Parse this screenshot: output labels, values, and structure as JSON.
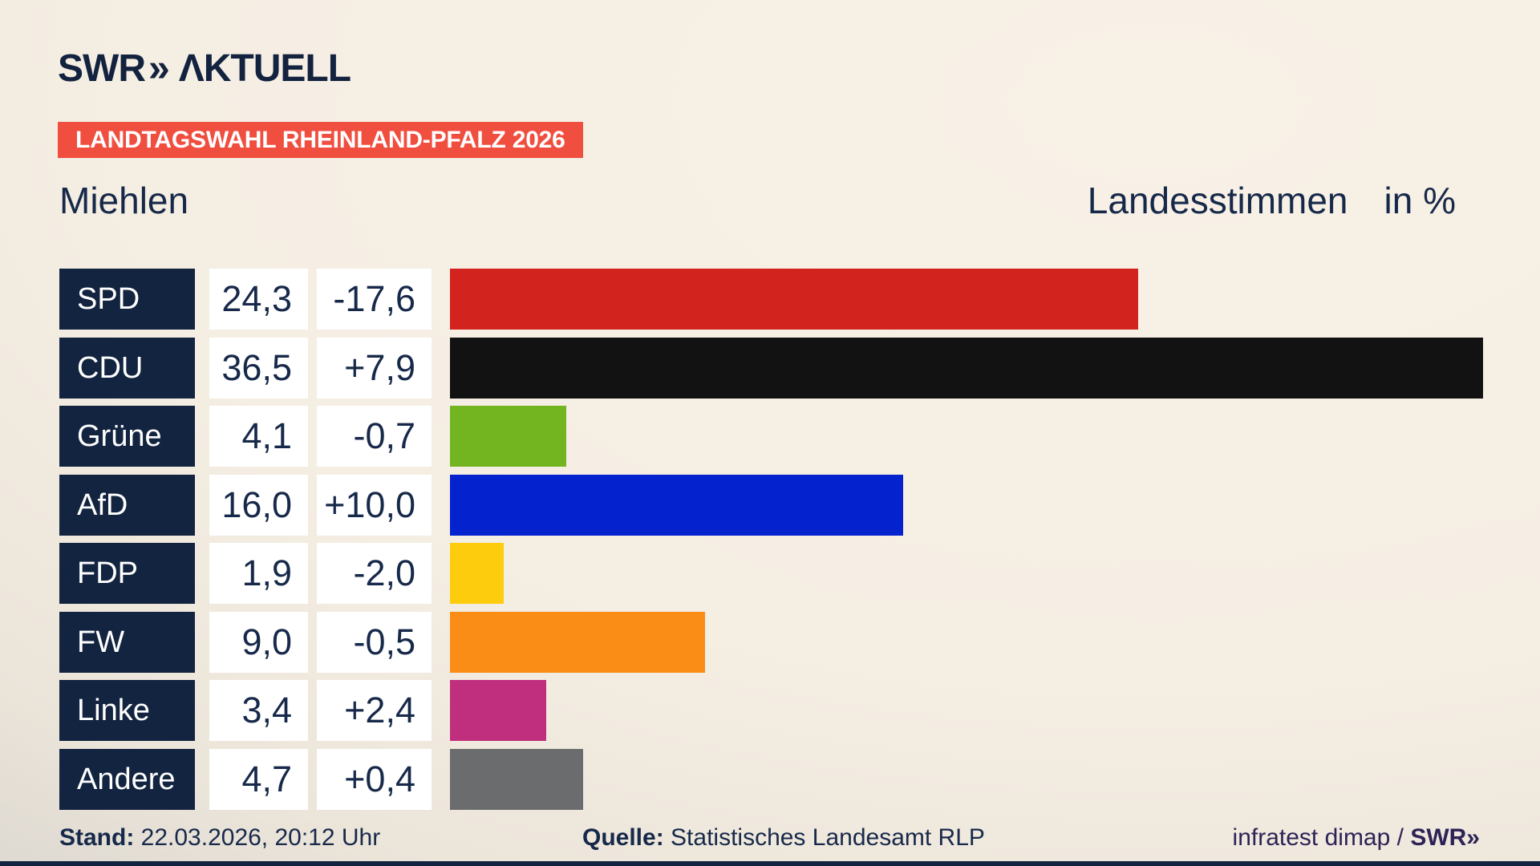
{
  "brand": {
    "logo_swr": "SWR",
    "logo_chevron": "»",
    "logo_aktuell": "ΛKTUELL",
    "logo_color": "#13223e"
  },
  "banner": {
    "label": "LANDTAGSWAHL RHEINLAND-PFALZ 2026",
    "bg_color": "#f04e3e",
    "text_color": "#ffffff"
  },
  "header": {
    "municipality": "Miehlen",
    "measure": "Landesstimmen",
    "unit": "in %"
  },
  "chart_data": {
    "type": "bar",
    "orientation": "horizontal",
    "title": "Landtagswahl Rheinland-Pfalz 2026 – Miehlen – Landesstimmen in %",
    "categories": [
      "SPD",
      "CDU",
      "Grüne",
      "AfD",
      "FDP",
      "FW",
      "Linke",
      "Andere"
    ],
    "values": [
      24.3,
      36.5,
      4.1,
      16.0,
      1.9,
      9.0,
      3.4,
      4.7
    ],
    "changes": [
      -17.6,
      7.9,
      -0.7,
      10.0,
      -2.0,
      -0.5,
      2.4,
      0.4
    ],
    "bar_colors": [
      "#d2231f",
      "#121212",
      "#73b521",
      "#0522cf",
      "#fdcc0d",
      "#f98d15",
      "#bf2f7e",
      "#6a6c6d"
    ],
    "unit": "%",
    "xlim": [
      0,
      38.5
    ],
    "grid": false,
    "legend": false
  },
  "rows": [
    {
      "party": "SPD",
      "value": "24,3",
      "change": "-17,6"
    },
    {
      "party": "CDU",
      "value": "36,5",
      "change": "+7,9"
    },
    {
      "party": "Grüne",
      "value": "4,1",
      "change": "-0,7"
    },
    {
      "party": "AfD",
      "value": "16,0",
      "change": "+10,0"
    },
    {
      "party": "FDP",
      "value": "1,9",
      "change": "-2,0"
    },
    {
      "party": "FW",
      "value": "9,0",
      "change": "-0,5"
    },
    {
      "party": "Linke",
      "value": "3,4",
      "change": "+2,4"
    },
    {
      "party": "Andere",
      "value": "4,7",
      "change": "+0,4"
    }
  ],
  "colors": {
    "party_box": "#132440",
    "value_text": "#17294a",
    "background_top": "#f8f1e6",
    "background_bottom_left": "#d2cfca",
    "bottom_strip": "#132440",
    "credit_text": "#2d2356"
  },
  "footer": {
    "stand_label": "Stand:",
    "stand_value": " 22.03.2026, 20:12 Uhr",
    "quelle_label": "Quelle:",
    "quelle_value": " Statistisches Landesamt RLP",
    "credit": "infratest dimap / ",
    "credit_brand": "SWR»"
  }
}
